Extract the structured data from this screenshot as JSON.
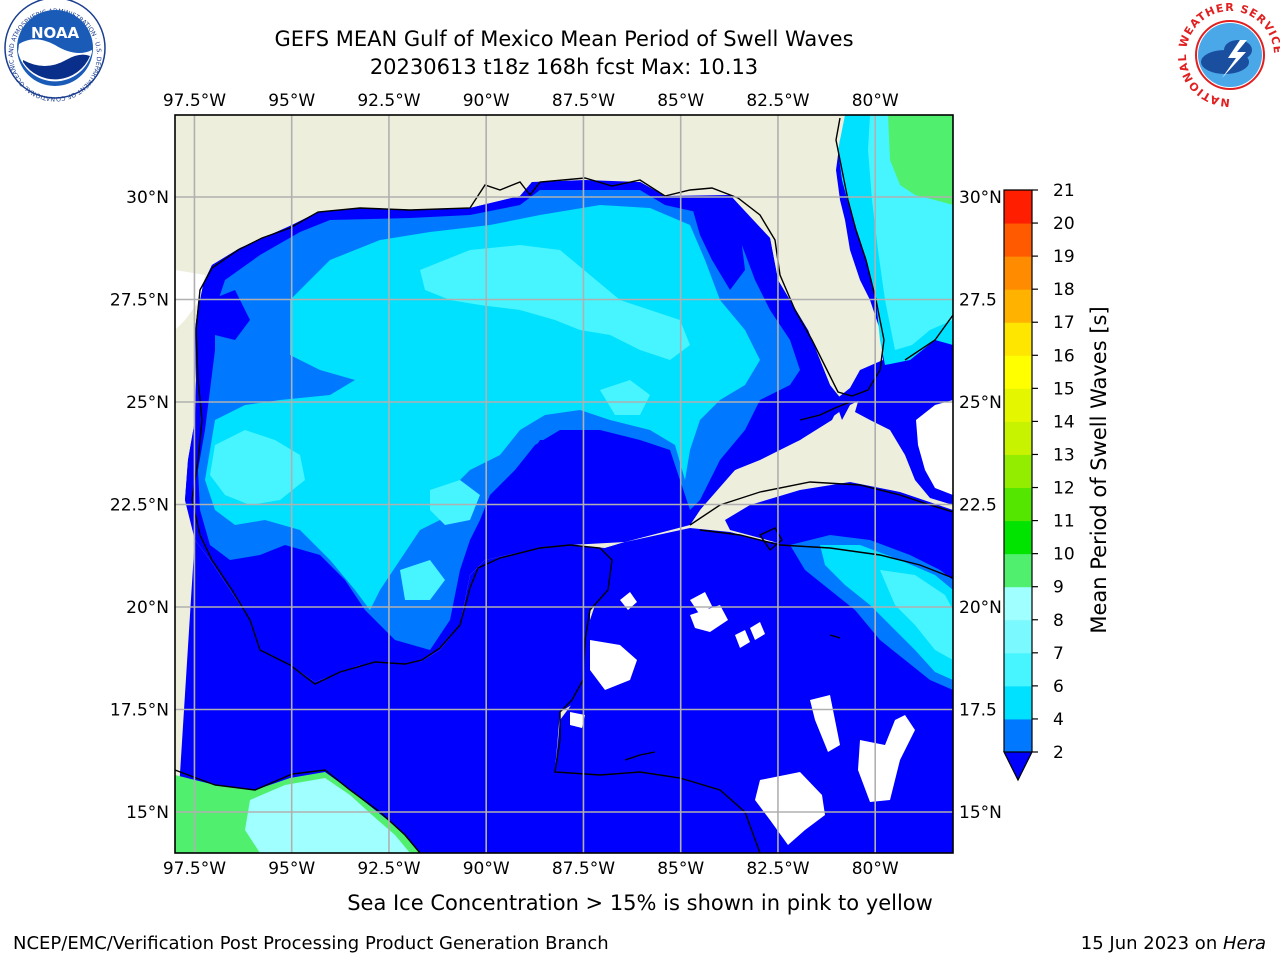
{
  "title": {
    "line1": "GEFS MEAN Gulf of Mexico Mean Period of Swell Waves",
    "line2": "20230613 t18z 168h fcst   Max: 10.13"
  },
  "logos": {
    "left": "NOAA",
    "left_ring_text": "NATIONAL OCEANIC AND ATMOSPHERIC ADMINISTRATION · U.S. DEPARTMENT OF COMMERCE",
    "right_ring_text": "NATIONAL WEATHER SERVICE"
  },
  "map": {
    "lon_range": [
      -98.0,
      -78.0
    ],
    "lat_range": [
      14.0,
      32.0
    ],
    "lon_ticks": [
      "97.5°W",
      "95°W",
      "92.5°W",
      "90°W",
      "87.5°W",
      "85°W",
      "82.5°W",
      "80°W"
    ],
    "lon_tick_values": [
      -97.5,
      -95,
      -92.5,
      -90,
      -87.5,
      -85,
      -82.5,
      -80
    ],
    "lat_ticks": [
      "15°N",
      "17.5°N",
      "20°N",
      "22.5°N",
      "25°N",
      "27.5°N",
      "30°N"
    ],
    "lat_tick_values": [
      15,
      17.5,
      20,
      22.5,
      25,
      27.5,
      30
    ],
    "right_lat_ticks": [
      "15°N",
      "17.5",
      "20°N",
      "22.5",
      "25°N",
      "27.5",
      "30°N"
    ],
    "land_color": "#eeeedd",
    "grid_color": "#b0b0b0"
  },
  "colorbar": {
    "label": "Mean Period of Swell Waves [s]",
    "ticks": [
      "2",
      "4",
      "6",
      "7",
      "8",
      "9",
      "10",
      "11",
      "12",
      "13",
      "14",
      "15",
      "16",
      "17",
      "18",
      "19",
      "20",
      "21"
    ],
    "colors": [
      "#0078ff",
      "#00e1ff",
      "#46f5ff",
      "#7af9ff",
      "#a0ffff",
      "#50f06e",
      "#00e400",
      "#55e600",
      "#93ed00",
      "#c7f200",
      "#e5f700",
      "#ffff00",
      "#ffe600",
      "#ffb300",
      "#ff8c00",
      "#ff5a00",
      "#ff1e00"
    ],
    "extend_below_color": "#0000ff"
  },
  "footnote": "Sea Ice Concentration > 15% is shown in pink to yellow",
  "credit_left": "NCEP/EMC/Verification Post Processing Product Generation Branch",
  "credit_right_date": "15 Jun 2023 on ",
  "credit_right_host": "Hera"
}
